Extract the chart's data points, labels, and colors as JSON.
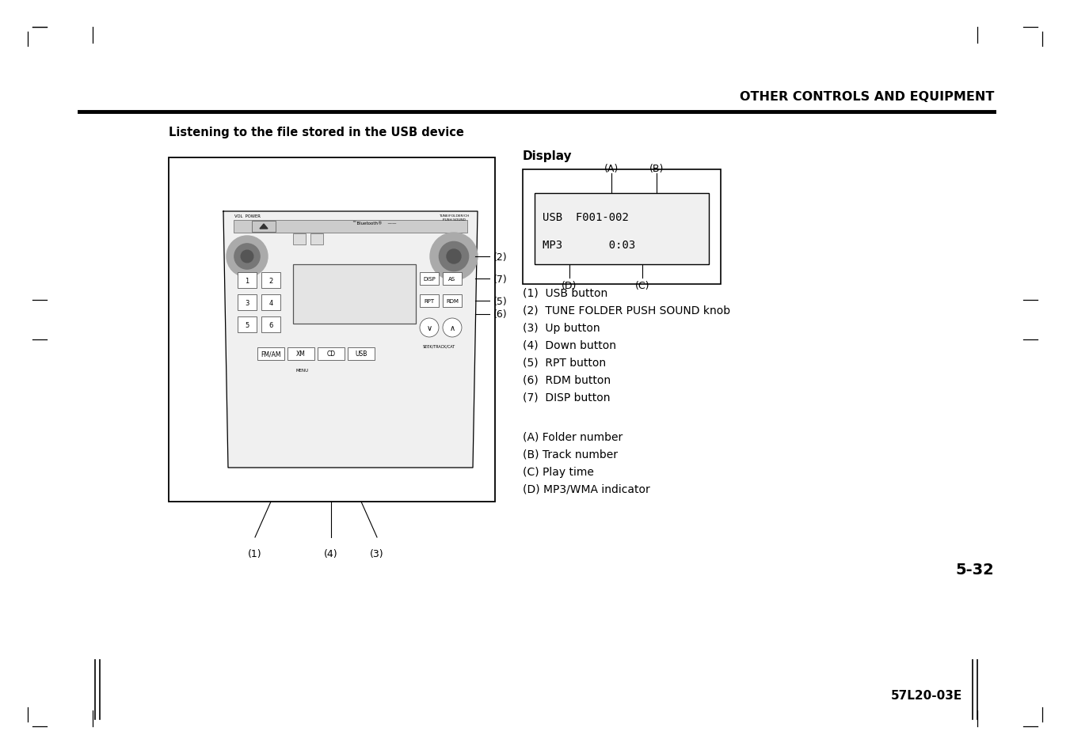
{
  "background_color": "#ffffff",
  "header_text": "OTHER CONTROLS AND EQUIPMENT",
  "section_title": "Listening to the file stored in the USB device",
  "display_label": "Display",
  "display_line1": "USB  F001-002",
  "display_line2": "MP3       0:03",
  "numbered_items": [
    "(1)  USB button",
    "(2)  TUNE FOLDER PUSH SOUND knob",
    "(3)  Up button",
    "(4)  Down button",
    "(5)  RPT button",
    "(6)  RDM button",
    "(7)  DISP button"
  ],
  "lettered_items": [
    "(A) Folder number",
    "(B) Track number",
    "(C) Play time",
    "(D) MP3/WMA indicator"
  ],
  "page_number": "5-32",
  "footer_code": "57L20-03E"
}
